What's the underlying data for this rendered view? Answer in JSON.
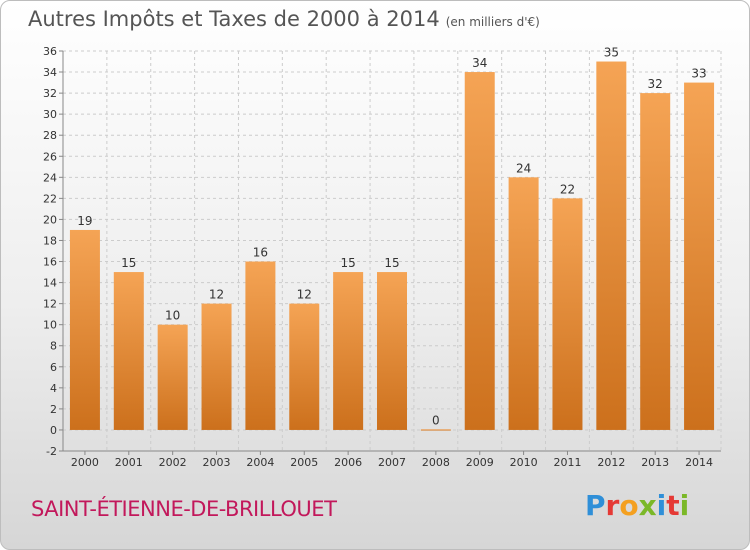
{
  "header": {
    "title": "Autres Impôts et Taxes de 2000 à 2014",
    "unit": "(en milliers d'€)"
  },
  "footer": {
    "commune": "SAINT-ÉTIENNE-DE-BRILLOUET",
    "logo_letters": [
      "P",
      "r",
      "o",
      "x",
      "i",
      "t",
      "i"
    ],
    "logo_colors": [
      "#2f8fd8",
      "#e53935",
      "#f4a020",
      "#7bb828",
      "#2f8fd8",
      "#e53935",
      "#7bb828"
    ]
  },
  "colors": {
    "bar_light": "#f5a455",
    "bar_dark": "#cc701c",
    "grid": "#cccccc",
    "axis_text": "#333333"
  },
  "chart_data": {
    "type": "bar",
    "title": "Autres Impôts et Taxes de 2000 à 2014",
    "subtitle": "(en milliers d'€)",
    "categories": [
      "2000",
      "2001",
      "2002",
      "2003",
      "2004",
      "2005",
      "2006",
      "2007",
      "2008",
      "2009",
      "2010",
      "2011",
      "2012",
      "2013",
      "2014"
    ],
    "values": [
      19,
      15,
      10,
      12,
      16,
      12,
      15,
      15,
      0,
      34,
      24,
      22,
      35,
      32,
      33
    ],
    "ylim": [
      -2,
      36
    ],
    "yticks": [
      -2,
      0,
      2,
      4,
      6,
      8,
      10,
      12,
      14,
      16,
      18,
      20,
      22,
      24,
      26,
      28,
      30,
      32,
      34,
      36
    ],
    "grid": true,
    "data_labels": true
  }
}
